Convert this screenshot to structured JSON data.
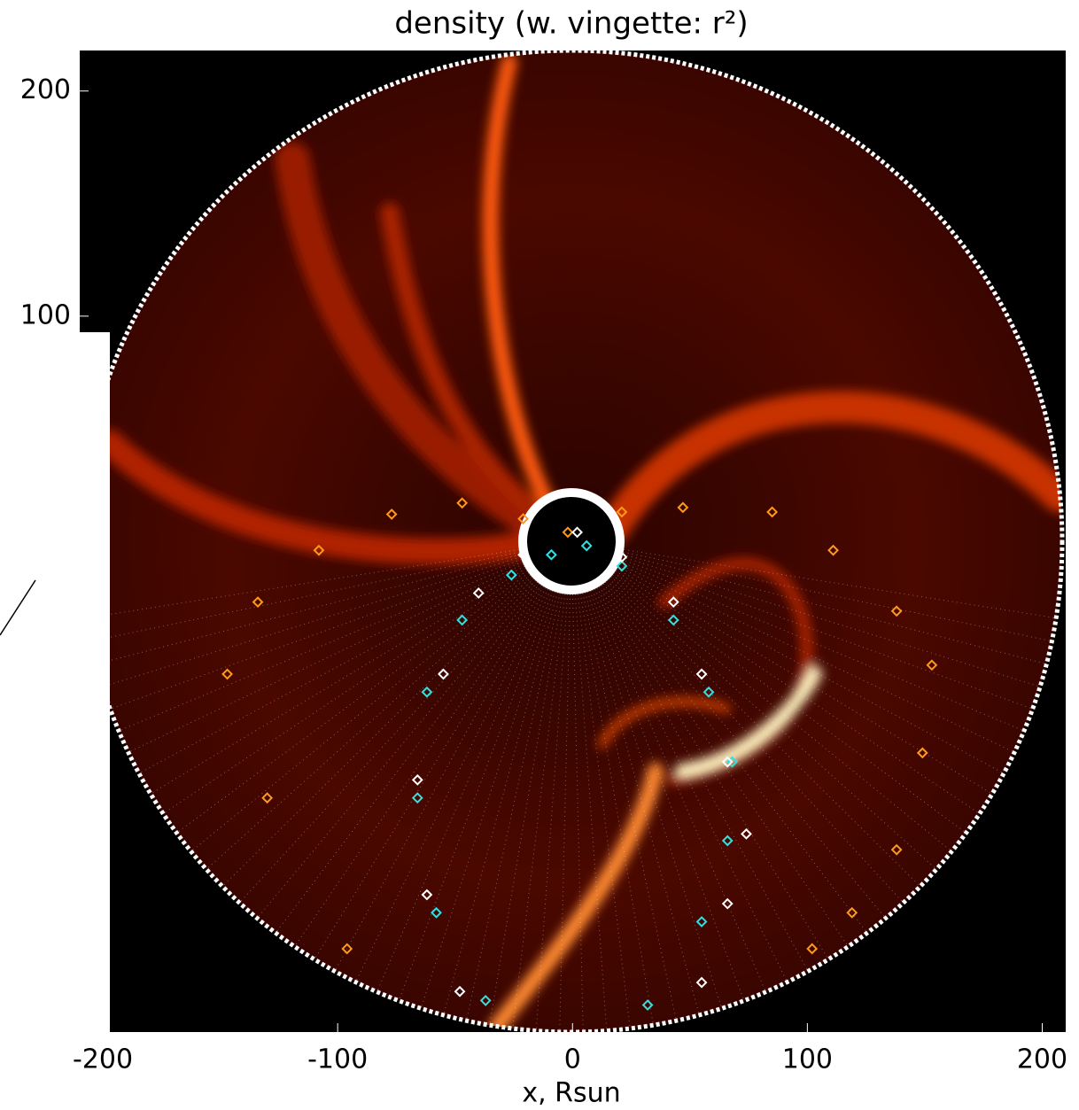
{
  "chart_data": {
    "type": "scatter",
    "title": "density (w. vingette: r²)",
    "x_label": "x, Rsun",
    "xlim": [
      -197,
      210
    ],
    "ylim": [
      -218,
      218
    ],
    "xticks": [
      -200,
      -100,
      0,
      100,
      200
    ],
    "yticks": [
      100,
      200
    ],
    "series": [
      {
        "name": "orange",
        "color": "#ff9a1a",
        "x": [
          -96,
          -130,
          -147,
          -134,
          -108,
          -77,
          -47,
          -21,
          -2,
          21,
          47,
          85,
          111,
          138,
          153,
          149,
          138,
          119,
          102
        ],
        "values": [
          -181,
          -114,
          -59,
          -27,
          -4,
          12,
          17,
          10,
          4,
          13,
          15,
          13,
          -4,
          -31,
          -55,
          -94,
          -137,
          -165,
          -181
        ]
      },
      {
        "name": "cyan",
        "color": "#33e0e0",
        "x": [
          -37,
          -58,
          -66,
          -62,
          -47,
          -26,
          -9,
          6,
          21,
          43,
          58,
          68,
          66,
          55,
          32
        ],
        "values": [
          -204,
          -165,
          -114,
          -67,
          -35,
          -15,
          -6,
          -2,
          -11,
          -35,
          -67,
          -98,
          -133,
          -169,
          -206
        ]
      },
      {
        "name": "white",
        "color": "#ffffff",
        "x": [
          -48,
          -62,
          -66,
          -55,
          -40,
          -21,
          2,
          21,
          43,
          55,
          66,
          74,
          66,
          55
        ],
        "values": [
          -200,
          -157,
          -106,
          -59,
          -23,
          -6,
          4,
          -7,
          -27,
          -59,
          -98,
          -130,
          -161,
          -196
        ]
      }
    ]
  }
}
